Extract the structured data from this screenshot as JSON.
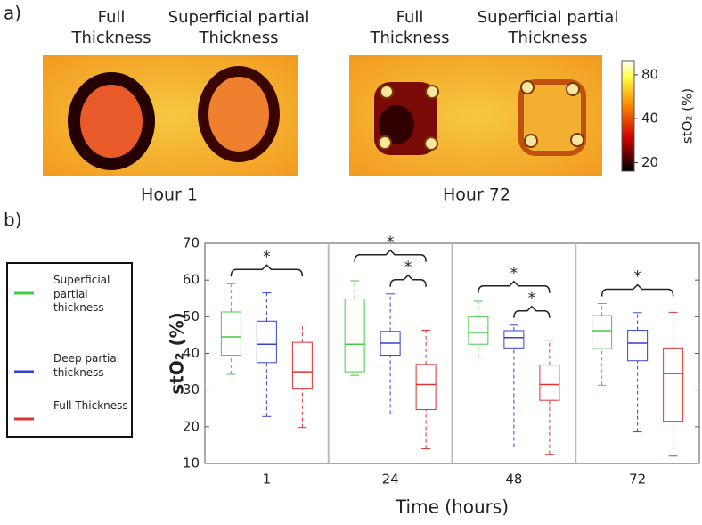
{
  "panel_a": {
    "label": "a)",
    "images": [
      {
        "caption": "Hour 1",
        "labels": [
          "Full Thickness",
          "Superficial partial Thickness"
        ]
      },
      {
        "caption": "Hour 72",
        "labels": [
          "Full Thickness",
          "Superficial partial Thickness"
        ]
      }
    ],
    "colorbar": {
      "label": "stO₂ (%)",
      "lim": [
        17.5,
        100
      ],
      "log": true,
      "ticks": [
        20,
        40,
        80
      ]
    }
  },
  "chart_data": {
    "type": "boxplot",
    "panel_label": "b)",
    "xlabel": "Time (hours)",
    "ylabel": "stO₂ (%)",
    "categories": [
      "1",
      "24",
      "48",
      "72"
    ],
    "ylim": [
      10,
      70
    ],
    "yticks": [
      10,
      20,
      30,
      40,
      50,
      60,
      70
    ],
    "series": [
      {
        "name": "Superficial partial thickness",
        "color": "#44cc44",
        "whislo": [
          34.3,
          34,
          39,
          31.3
        ],
        "q1": [
          39.5,
          35,
          42.5,
          41.3
        ],
        "med": [
          44.5,
          42.5,
          45.7,
          46.2
        ],
        "q3": [
          51.3,
          54.8,
          50,
          50.3
        ],
        "whishi": [
          59,
          59.8,
          54.2,
          53.6
        ]
      },
      {
        "name": "Deep partial thickness",
        "color": "#3344cc",
        "whislo": [
          22.8,
          23.5,
          14.5,
          18.6
        ],
        "q1": [
          37.5,
          39.5,
          41.5,
          38
        ],
        "med": [
          42.5,
          42.8,
          44.3,
          42.8
        ],
        "q3": [
          48.8,
          46,
          46.2,
          46.3
        ],
        "whishi": [
          56.5,
          56.2,
          47.7,
          51.1
        ]
      },
      {
        "name": "Full Thickness",
        "color": "#dd3333",
        "whislo": [
          19.8,
          14,
          12.5,
          12
        ],
        "q1": [
          30.5,
          24.7,
          27.2,
          21.5
        ],
        "med": [
          35,
          31.5,
          31.5,
          34.5
        ],
        "q3": [
          43,
          37,
          36.8,
          41.5
        ],
        "whishi": [
          48,
          46.3,
          43.6,
          51.2
        ]
      }
    ],
    "annotations": [
      {
        "category": 0,
        "from": 0,
        "to": 2,
        "text": "*"
      },
      {
        "category": 1,
        "from": 1,
        "to": 2,
        "text": "*"
      },
      {
        "category": 1,
        "from": 0,
        "to": 2,
        "text": "*"
      },
      {
        "category": 2,
        "from": 1,
        "to": 2,
        "text": "*"
      },
      {
        "category": 2,
        "from": 0,
        "to": 2,
        "text": "*"
      },
      {
        "category": 3,
        "from": 0,
        "to": 2,
        "text": "*"
      }
    ]
  }
}
